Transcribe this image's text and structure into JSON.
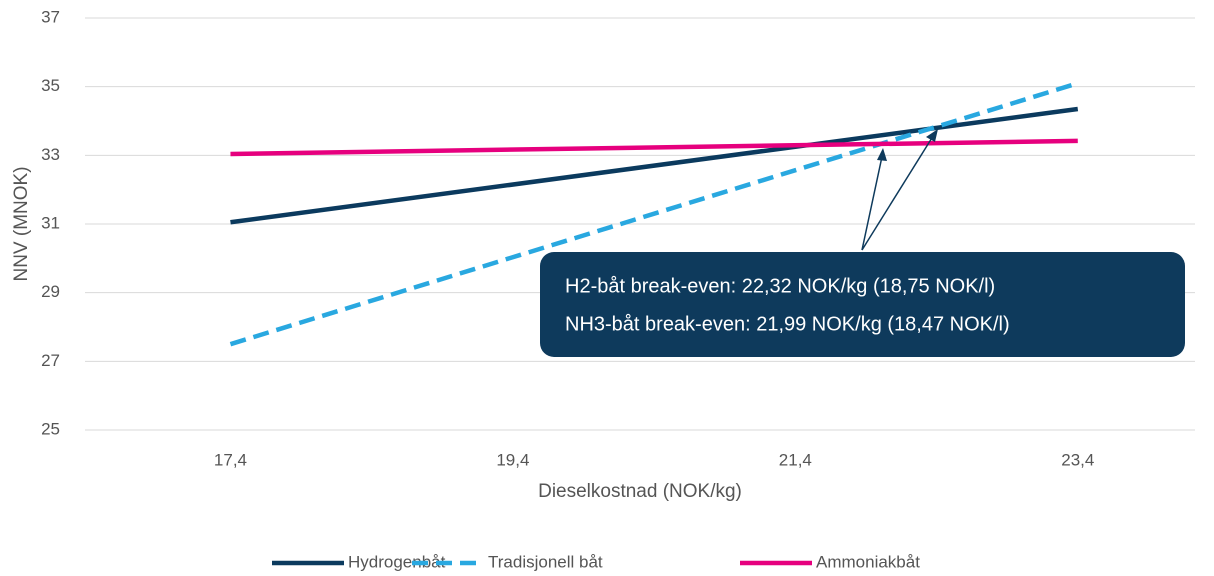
{
  "chart_data": {
    "type": "line",
    "x_label": "Dieselkostnad (NOK/kg)",
    "y_label": "NNV (MNOK)",
    "x": [
      17.4,
      23.4
    ],
    "series": [
      {
        "name": "Hydrogenbåt",
        "color": "#0b3a5e",
        "dash": "solid",
        "values": [
          31.05,
          34.35
        ]
      },
      {
        "name": "Tradisjonell båt",
        "color": "#29a8e0",
        "dash": "dashed",
        "values": [
          27.5,
          35.1
        ]
      },
      {
        "name": "Ammoniakbåt",
        "color": "#e6007e",
        "dash": "solid",
        "values": [
          33.04,
          33.42
        ]
      }
    ],
    "xlim": [
      16.37,
      24.23
    ],
    "xticks": [
      {
        "value": 17.4,
        "label": "17,4"
      },
      {
        "value": 19.4,
        "label": "19,4"
      },
      {
        "value": 21.4,
        "label": "21,4"
      },
      {
        "value": 23.4,
        "label": "23,4"
      }
    ],
    "ylim": [
      25,
      37
    ],
    "yticks": [
      25,
      27,
      29,
      31,
      33,
      35,
      37
    ],
    "grid": true,
    "legend": "bottom",
    "annotation": [
      "H2-båt break-even: 22,32 NOK/kg (18,75 NOK/l)",
      "NH3-båt break-even: 21,99 NOK/kg (18,47 NOK/l)"
    ]
  }
}
